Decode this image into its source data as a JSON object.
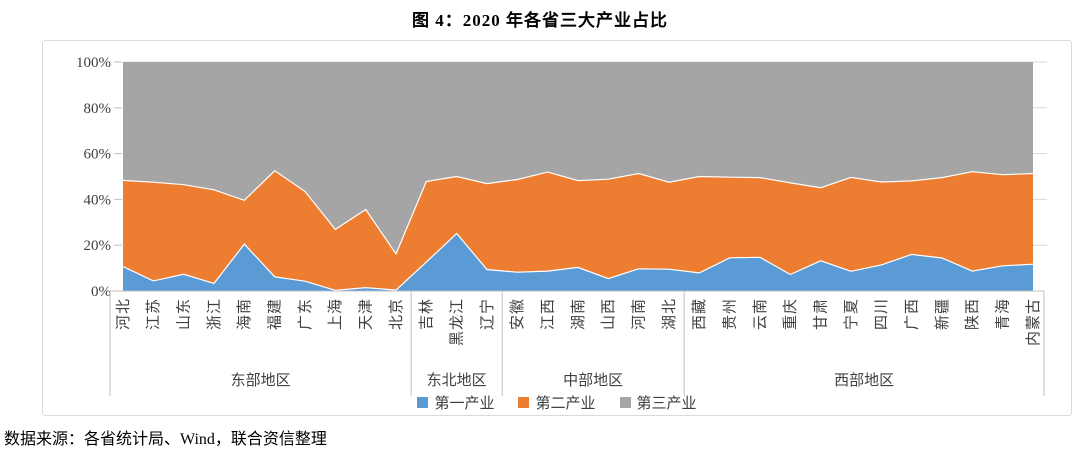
{
  "title": "图 4：2020 年各省三大产业占比",
  "footer": {
    "source": "数据来源：各省统计局、Wind，联合资信整理"
  },
  "colors": {
    "primary": "#5B9BD5",
    "secondary": "#ED7D31",
    "tertiary": "#A5A5A5",
    "gridline": "#D9D9D9",
    "axis_line": "#BFBFBF",
    "axis_text": "#404040",
    "border": "#D9D9D9",
    "boundary_stroke": "#FFFFFF"
  },
  "chart_data": {
    "type": "area",
    "stacked": true,
    "units": "%",
    "title": "图 4：2020 年各省三大产业占比",
    "xlabel": "",
    "ylabel": "",
    "ylim": [
      0,
      100
    ],
    "yticks": [
      0,
      20,
      40,
      60,
      80,
      100
    ],
    "ytick_suffix": "%",
    "grid": true,
    "legend_position": "bottom",
    "categories": [
      "河北",
      "江苏",
      "山东",
      "浙江",
      "海南",
      "福建",
      "广东",
      "上海",
      "天津",
      "北京",
      "吉林",
      "黑龙江",
      "辽宁",
      "安徽",
      "江西",
      "湖南",
      "山西",
      "河南",
      "湖北",
      "西藏",
      "贵州",
      "云南",
      "重庆",
      "甘肃",
      "宁夏",
      "四川",
      "广西",
      "新疆",
      "陕西",
      "青海",
      "内蒙古"
    ],
    "groups": [
      {
        "label": "东部地区",
        "span": 10
      },
      {
        "label": "东北地区",
        "span": 3
      },
      {
        "label": "中部地区",
        "span": 6
      },
      {
        "label": "西部地区",
        "span": 12
      }
    ],
    "series": [
      {
        "name": "第一产业",
        "color": "#5B9BD5",
        "values": [
          10.7,
          4.4,
          7.3,
          3.3,
          20.5,
          6.2,
          4.3,
          0.3,
          1.5,
          0.4,
          12.6,
          25.1,
          9.4,
          8.2,
          8.7,
          10.3,
          5.4,
          9.7,
          9.5,
          7.9,
          14.5,
          14.7,
          7.2,
          13.2,
          8.6,
          11.4,
          16.0,
          14.4,
          8.7,
          11.0,
          11.7
        ]
      },
      {
        "name": "第二产业",
        "color": "#ED7D31",
        "values": [
          37.6,
          43.1,
          39.1,
          40.9,
          19.1,
          46.3,
          39.2,
          26.6,
          34.1,
          15.8,
          35.2,
          24.9,
          37.5,
          40.5,
          43.2,
          37.9,
          43.4,
          41.6,
          38.0,
          42.1,
          35.2,
          34.8,
          40.0,
          31.9,
          41.0,
          36.2,
          32.1,
          35.1,
          43.4,
          39.8,
          39.6
        ]
      },
      {
        "name": "第三产业",
        "color": "#A5A5A5",
        "values": [
          51.7,
          52.5,
          53.6,
          55.8,
          60.4,
          47.5,
          56.5,
          73.1,
          64.4,
          83.8,
          52.2,
          50.0,
          53.1,
          51.3,
          48.1,
          51.8,
          51.2,
          48.7,
          52.5,
          50.0,
          50.3,
          50.5,
          52.8,
          54.9,
          50.4,
          52.4,
          51.9,
          50.5,
          47.9,
          49.2,
          48.7
        ]
      }
    ]
  }
}
